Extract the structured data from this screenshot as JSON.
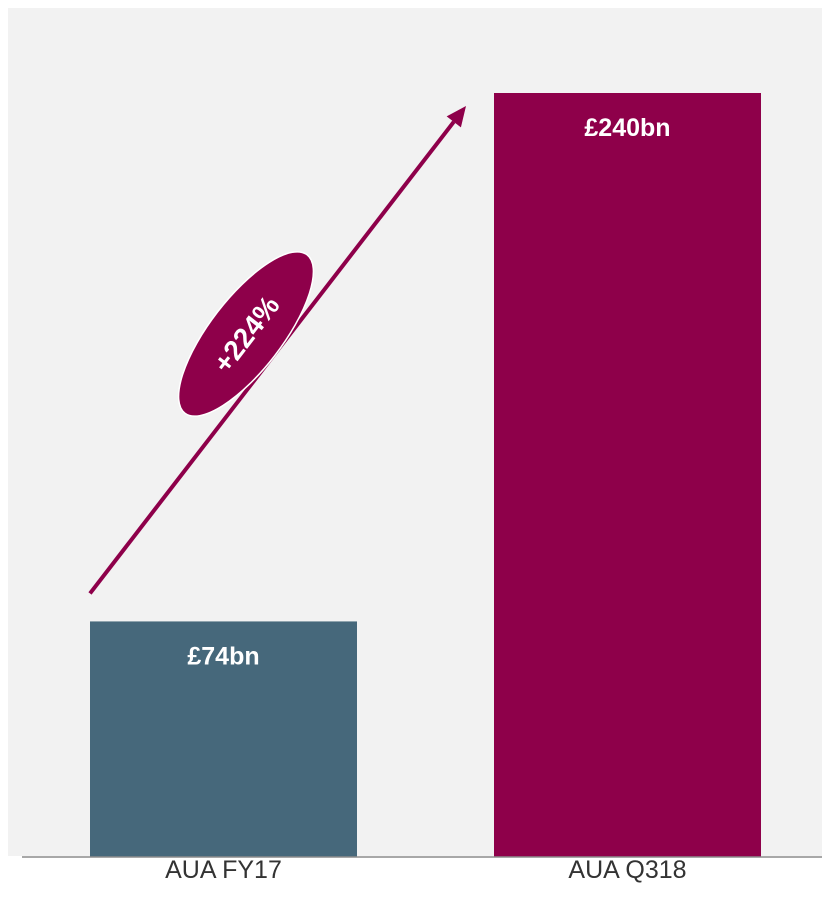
{
  "chart_data": {
    "type": "bar",
    "categories": [
      "AUA FY17",
      "AUA Q318"
    ],
    "values": [
      74,
      240
    ],
    "value_labels": [
      "£74bn",
      "£240bn"
    ],
    "annotation": "+224%",
    "ylim": [
      0,
      240
    ],
    "grid": false,
    "legend": "none"
  },
  "colors": {
    "background": "#f2f2f2",
    "bars": [
      "#46687b",
      "#8e004a"
    ],
    "arrow": "#8e004a",
    "baseline": "#8c8c8c",
    "value_label": "#ffffff",
    "category_label": "#333333"
  }
}
